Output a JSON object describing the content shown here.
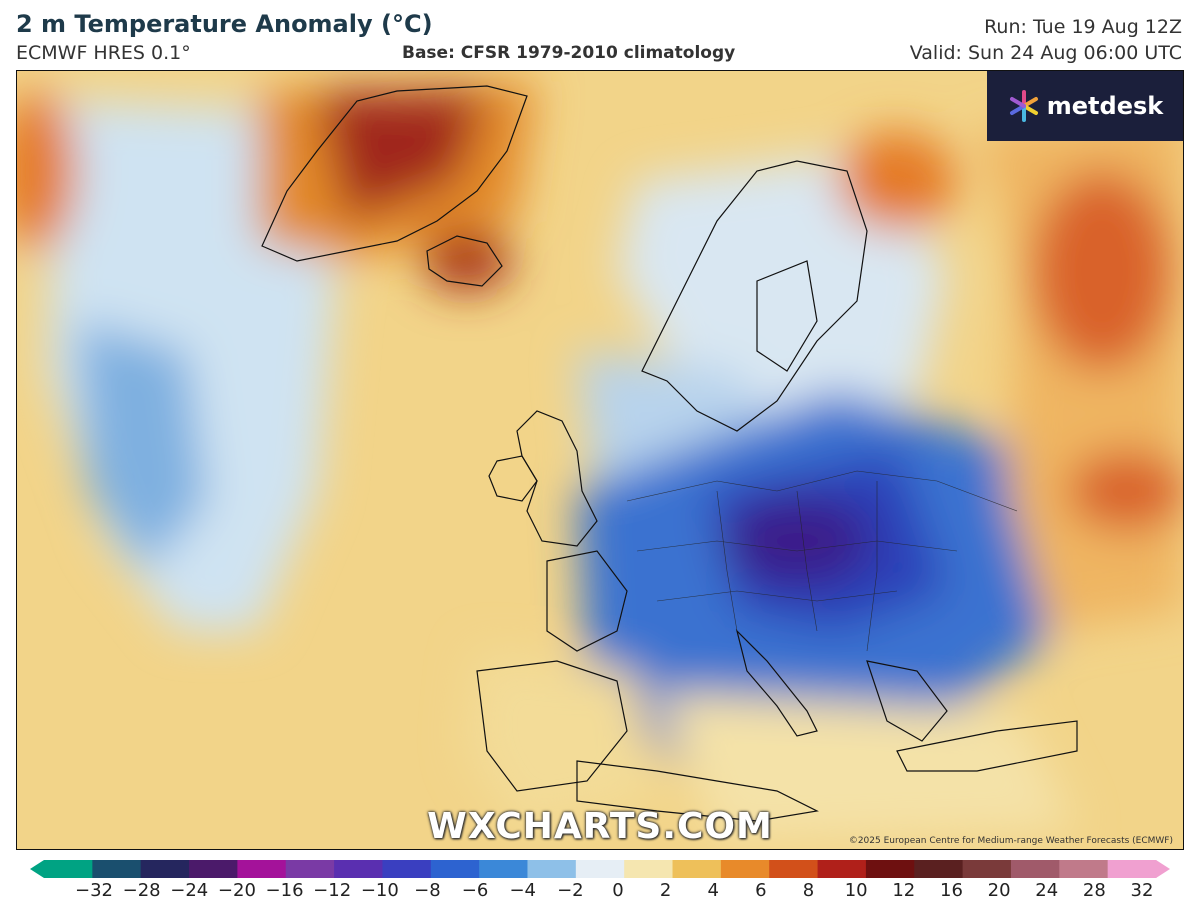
{
  "header": {
    "title": "2 m Temperature Anomaly (°C)",
    "model": "ECMWF HRES 0.1°",
    "base": "Base: CFSR 1979-2010 climatology",
    "run": "Run: Tue 19 Aug 12Z",
    "valid": "Valid: Sun 24 Aug 06:00 UTC"
  },
  "logo": {
    "text": "metdesk",
    "icon": "metdesk-star-icon"
  },
  "watermark": "WXCHARTS.COM",
  "copyright": "©2025 European Centre for Medium-range Weather Forecasts (ECMWF)",
  "colorbar": {
    "unit": "°C",
    "ticks": [
      "−32",
      "−28",
      "−24",
      "−20",
      "−16",
      "−12",
      "−10",
      "−8",
      "−6",
      "−4",
      "−2",
      "0",
      "2",
      "4",
      "6",
      "8",
      "10",
      "12",
      "16",
      "20",
      "24",
      "28",
      "32"
    ],
    "colors": [
      "#00a383",
      "#1a4f6e",
      "#25265e",
      "#4b1a6a",
      "#a4129a",
      "#7a3aa5",
      "#5a2fb0",
      "#3a3fc0",
      "#2d63d0",
      "#3b88d8",
      "#8ec0e8",
      "#e6eef5",
      "#f5e6b0",
      "#eec05a",
      "#e88a2a",
      "#d2501a",
      "#b0201a",
      "#6e1010",
      "#5a2020",
      "#7a3a3a",
      "#a05a6a",
      "#c07a8a",
      "#f0a0d0"
    ]
  },
  "colors": {
    "warm": "#f2d489",
    "orange": "#e8962e",
    "hot": "#b0301a",
    "cool": "#cfe3f2",
    "cold": "#2f66c8",
    "coldest": "#3a1a8a"
  }
}
